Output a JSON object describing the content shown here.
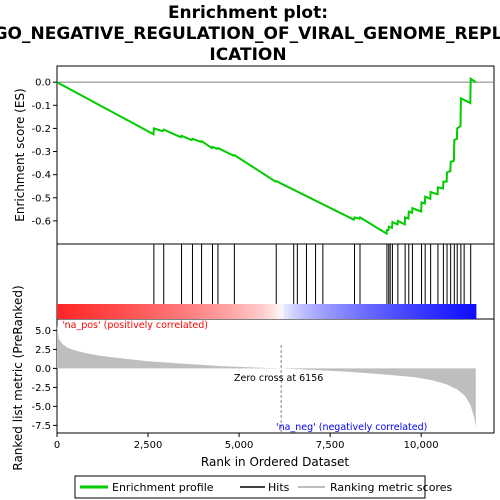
{
  "title_lines": [
    "Enrichment plot:",
    "GO_NEGATIVE_REGULATION_OF_VIRAL_GENOME_REPL",
    "ICATION"
  ],
  "chart_data": [
    {
      "panel": "enrichment",
      "type": "line",
      "ylabel": "Enrichment score (ES)",
      "ylim": [
        -0.7,
        0.07
      ],
      "yticks": [
        0.0,
        -0.1,
        -0.2,
        -0.3,
        -0.4,
        -0.5,
        -0.6
      ],
      "ytick_labels": [
        "0.0",
        "-0.1",
        "-0.2",
        "-0.3",
        "-0.4",
        "-0.5",
        "-0.6"
      ],
      "xlim": [
        0,
        12000
      ],
      "series": [
        {
          "name": "Enrichment profile",
          "color": "#00cc00",
          "x": [
            0,
            2650,
            2660,
            2900,
            2930,
            3400,
            3420,
            3700,
            3720,
            3950,
            3970,
            4250,
            4270,
            4400,
            4420,
            4850,
            4870,
            6000,
            6020,
            8150,
            8170,
            8300,
            8320,
            9050,
            9060,
            9100,
            9110,
            9200,
            9210,
            9350,
            9360,
            9550,
            9560,
            9650,
            9660,
            9750,
            9760,
            10000,
            10010,
            10100,
            10110,
            10250,
            10260,
            10450,
            10460,
            10600,
            10610,
            10700,
            10710,
            10800,
            10810,
            10900,
            10910,
            10980,
            10990,
            11080,
            11090,
            11350,
            11360,
            11500
          ],
          "y": [
            0.0,
            -0.225,
            -0.2,
            -0.212,
            -0.205,
            -0.238,
            -0.232,
            -0.25,
            -0.245,
            -0.258,
            -0.255,
            -0.285,
            -0.28,
            -0.288,
            -0.285,
            -0.318,
            -0.315,
            -0.43,
            -0.428,
            -0.595,
            -0.585,
            -0.59,
            -0.585,
            -0.655,
            -0.64,
            -0.64,
            -0.625,
            -0.63,
            -0.605,
            -0.615,
            -0.6,
            -0.615,
            -0.585,
            -0.59,
            -0.56,
            -0.565,
            -0.545,
            -0.56,
            -0.52,
            -0.525,
            -0.495,
            -0.505,
            -0.475,
            -0.485,
            -0.455,
            -0.46,
            -0.43,
            -0.43,
            -0.39,
            -0.385,
            -0.345,
            -0.34,
            -0.25,
            -0.245,
            -0.2,
            -0.19,
            -0.07,
            -0.09,
            0.015,
            0.0
          ]
        }
      ]
    },
    {
      "panel": "hits",
      "type": "scatter",
      "series": [
        {
          "name": "Hits",
          "color": "#000000",
          "x": [
            2660,
            2930,
            3420,
            3720,
            3970,
            4270,
            4420,
            4870,
            6020,
            6500,
            6600,
            6850,
            7100,
            7300,
            8170,
            8320,
            9060,
            9110,
            9150,
            9210,
            9360,
            9560,
            9660,
            9760,
            10010,
            10110,
            10260,
            10460,
            10610,
            10710,
            10810,
            10910,
            10990,
            11090,
            11180,
            11360
          ]
        }
      ]
    },
    {
      "panel": "ranked_list",
      "type": "area",
      "ylabel": "Ranked list metric (PreRanked)",
      "xlabel": "Rank in Ordered Dataset",
      "ylim": [
        -8.5,
        6.5
      ],
      "yticks": [
        5.0,
        2.5,
        0.0,
        -2.5,
        -5.0,
        -7.5
      ],
      "ytick_labels": [
        "5.0",
        "2.5",
        "0.0",
        "-2.5",
        "-5.0",
        "-7.5"
      ],
      "xlim": [
        0,
        12000
      ],
      "xticks": [
        0,
        2500,
        5000,
        7500,
        10000
      ],
      "xtick_labels": [
        "0",
        "2,500",
        "5,000",
        "7,500",
        "10,000"
      ],
      "series": [
        {
          "name": "Ranking metric scores",
          "color": "#bebebe",
          "x": [
            0,
            50,
            150,
            300,
            500,
            800,
            1200,
            1800,
            2500,
            3500,
            4500,
            5500,
            6156,
            7000,
            8000,
            9000,
            9800,
            10300,
            10700,
            11000,
            11200,
            11350,
            11450,
            11500
          ],
          "y": [
            5.8,
            3.9,
            3.2,
            2.7,
            2.35,
            2.0,
            1.65,
            1.3,
            0.95,
            0.6,
            0.3,
            0.1,
            0.0,
            -0.2,
            -0.45,
            -0.8,
            -1.15,
            -1.55,
            -2.1,
            -2.8,
            -3.6,
            -4.8,
            -6.3,
            -7.8
          ]
        }
      ],
      "annotations": [
        "'na_pos' (positively correlated)",
        "Zero cross at 6156",
        "'na_neg' (negatively correlated)"
      ],
      "zero_cross": 6156
    }
  ],
  "legend": {
    "items": [
      {
        "label": "Enrichment profile",
        "color": "#00cc00"
      },
      {
        "label": "Hits",
        "color": "#000000"
      },
      {
        "label": "Ranking metric scores",
        "color": "#bebebe"
      }
    ]
  },
  "colors": {
    "pos": "#ff0000",
    "neg": "#0000ff",
    "zero_line": "#808080"
  }
}
